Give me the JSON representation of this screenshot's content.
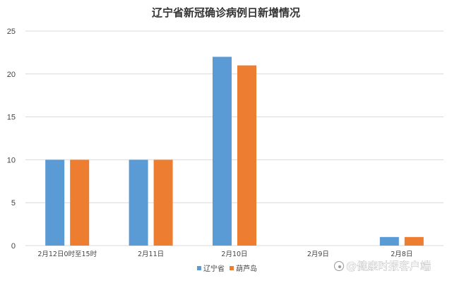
{
  "chart_data": {
    "type": "bar",
    "title": "辽宁省新冠确诊病例日新增情况",
    "categories": [
      "2月12日0时至15时",
      "2月11日",
      "2月10日",
      "2月9日",
      "2月8日"
    ],
    "series": [
      {
        "name": "辽宁省",
        "color": "#5B9BD5",
        "values": [
          10,
          10,
          22,
          0,
          1
        ]
      },
      {
        "name": "葫芦岛",
        "color": "#ED7D31",
        "values": [
          10,
          10,
          21,
          0,
          1
        ]
      }
    ],
    "ylim": [
      0,
      25
    ],
    "yticks": [
      0,
      5,
      10,
      15,
      20,
      25
    ],
    "grid": true,
    "legend": "bottom-center",
    "xlabel": "",
    "ylabel": ""
  },
  "watermark": {
    "icon": "weibo-icon",
    "text": "@健康时报客户端"
  }
}
